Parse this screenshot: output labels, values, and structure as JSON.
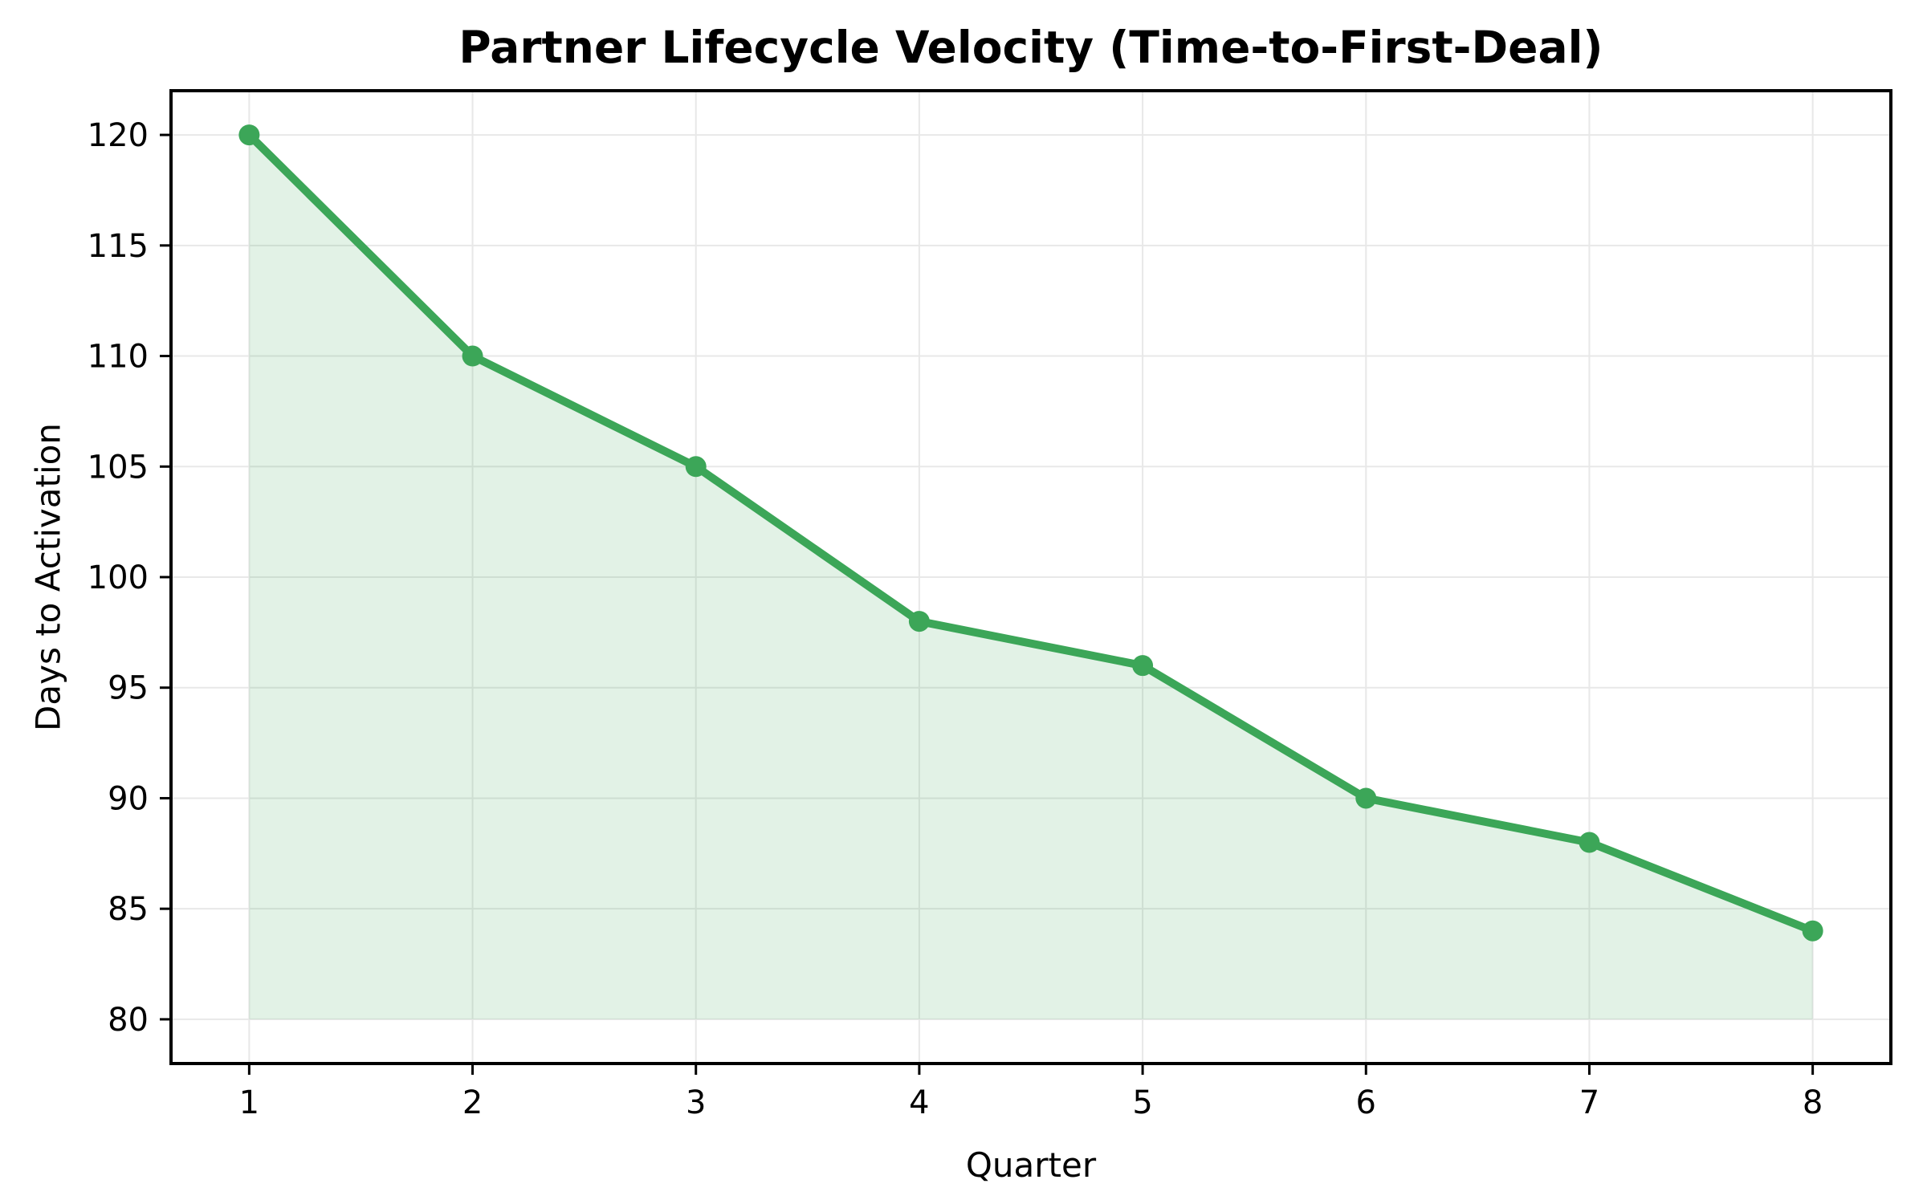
{
  "chart_data": {
    "type": "line",
    "title": "Partner Lifecycle Velocity (Time-to-First-Deal)",
    "xlabel": "Quarter",
    "ylabel": "Days to Activation",
    "x": [
      1,
      2,
      3,
      4,
      5,
      6,
      7,
      8
    ],
    "series": [
      {
        "name": "Days to Activation",
        "values": [
          120,
          110,
          105,
          98,
          96,
          90,
          88,
          84
        ]
      }
    ],
    "area_fill": true,
    "area_baseline": 80,
    "xlim": [
      0.65,
      8.35
    ],
    "ylim": [
      78,
      122
    ],
    "xticks": [
      1,
      2,
      3,
      4,
      5,
      6,
      7,
      8
    ],
    "yticks": [
      80,
      85,
      90,
      95,
      100,
      105,
      110,
      115,
      120
    ],
    "grid": true,
    "legend": "none",
    "marker": "circle",
    "colors": {
      "line": "#3CA658",
      "marker": "#3CA658",
      "fill": "rgba(60,166,88,0.15)",
      "grid": "#E8E8E8",
      "spine": "#000000",
      "text": "#000000",
      "background": "#FFFFFF"
    }
  }
}
